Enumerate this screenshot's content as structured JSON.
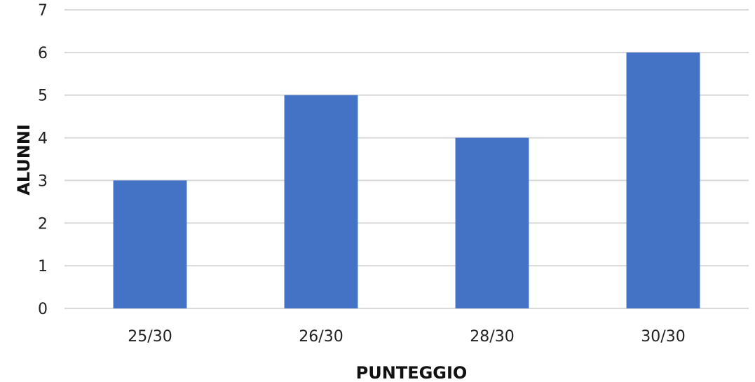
{
  "chart_data": {
    "type": "bar",
    "title": "",
    "xlabel": "PUNTEGGIO",
    "ylabel": "ALUNNI",
    "categories": [
      "25/30",
      "26/30",
      "28/30",
      "30/30"
    ],
    "values": [
      3,
      5,
      4,
      6
    ],
    "ylim": [
      0,
      7
    ],
    "yticks": [
      0,
      1,
      2,
      3,
      4,
      5,
      6,
      7
    ],
    "grid": true,
    "legend": "none",
    "bar_color": "#4472C4",
    "grid_color": "#D9D9D9"
  }
}
